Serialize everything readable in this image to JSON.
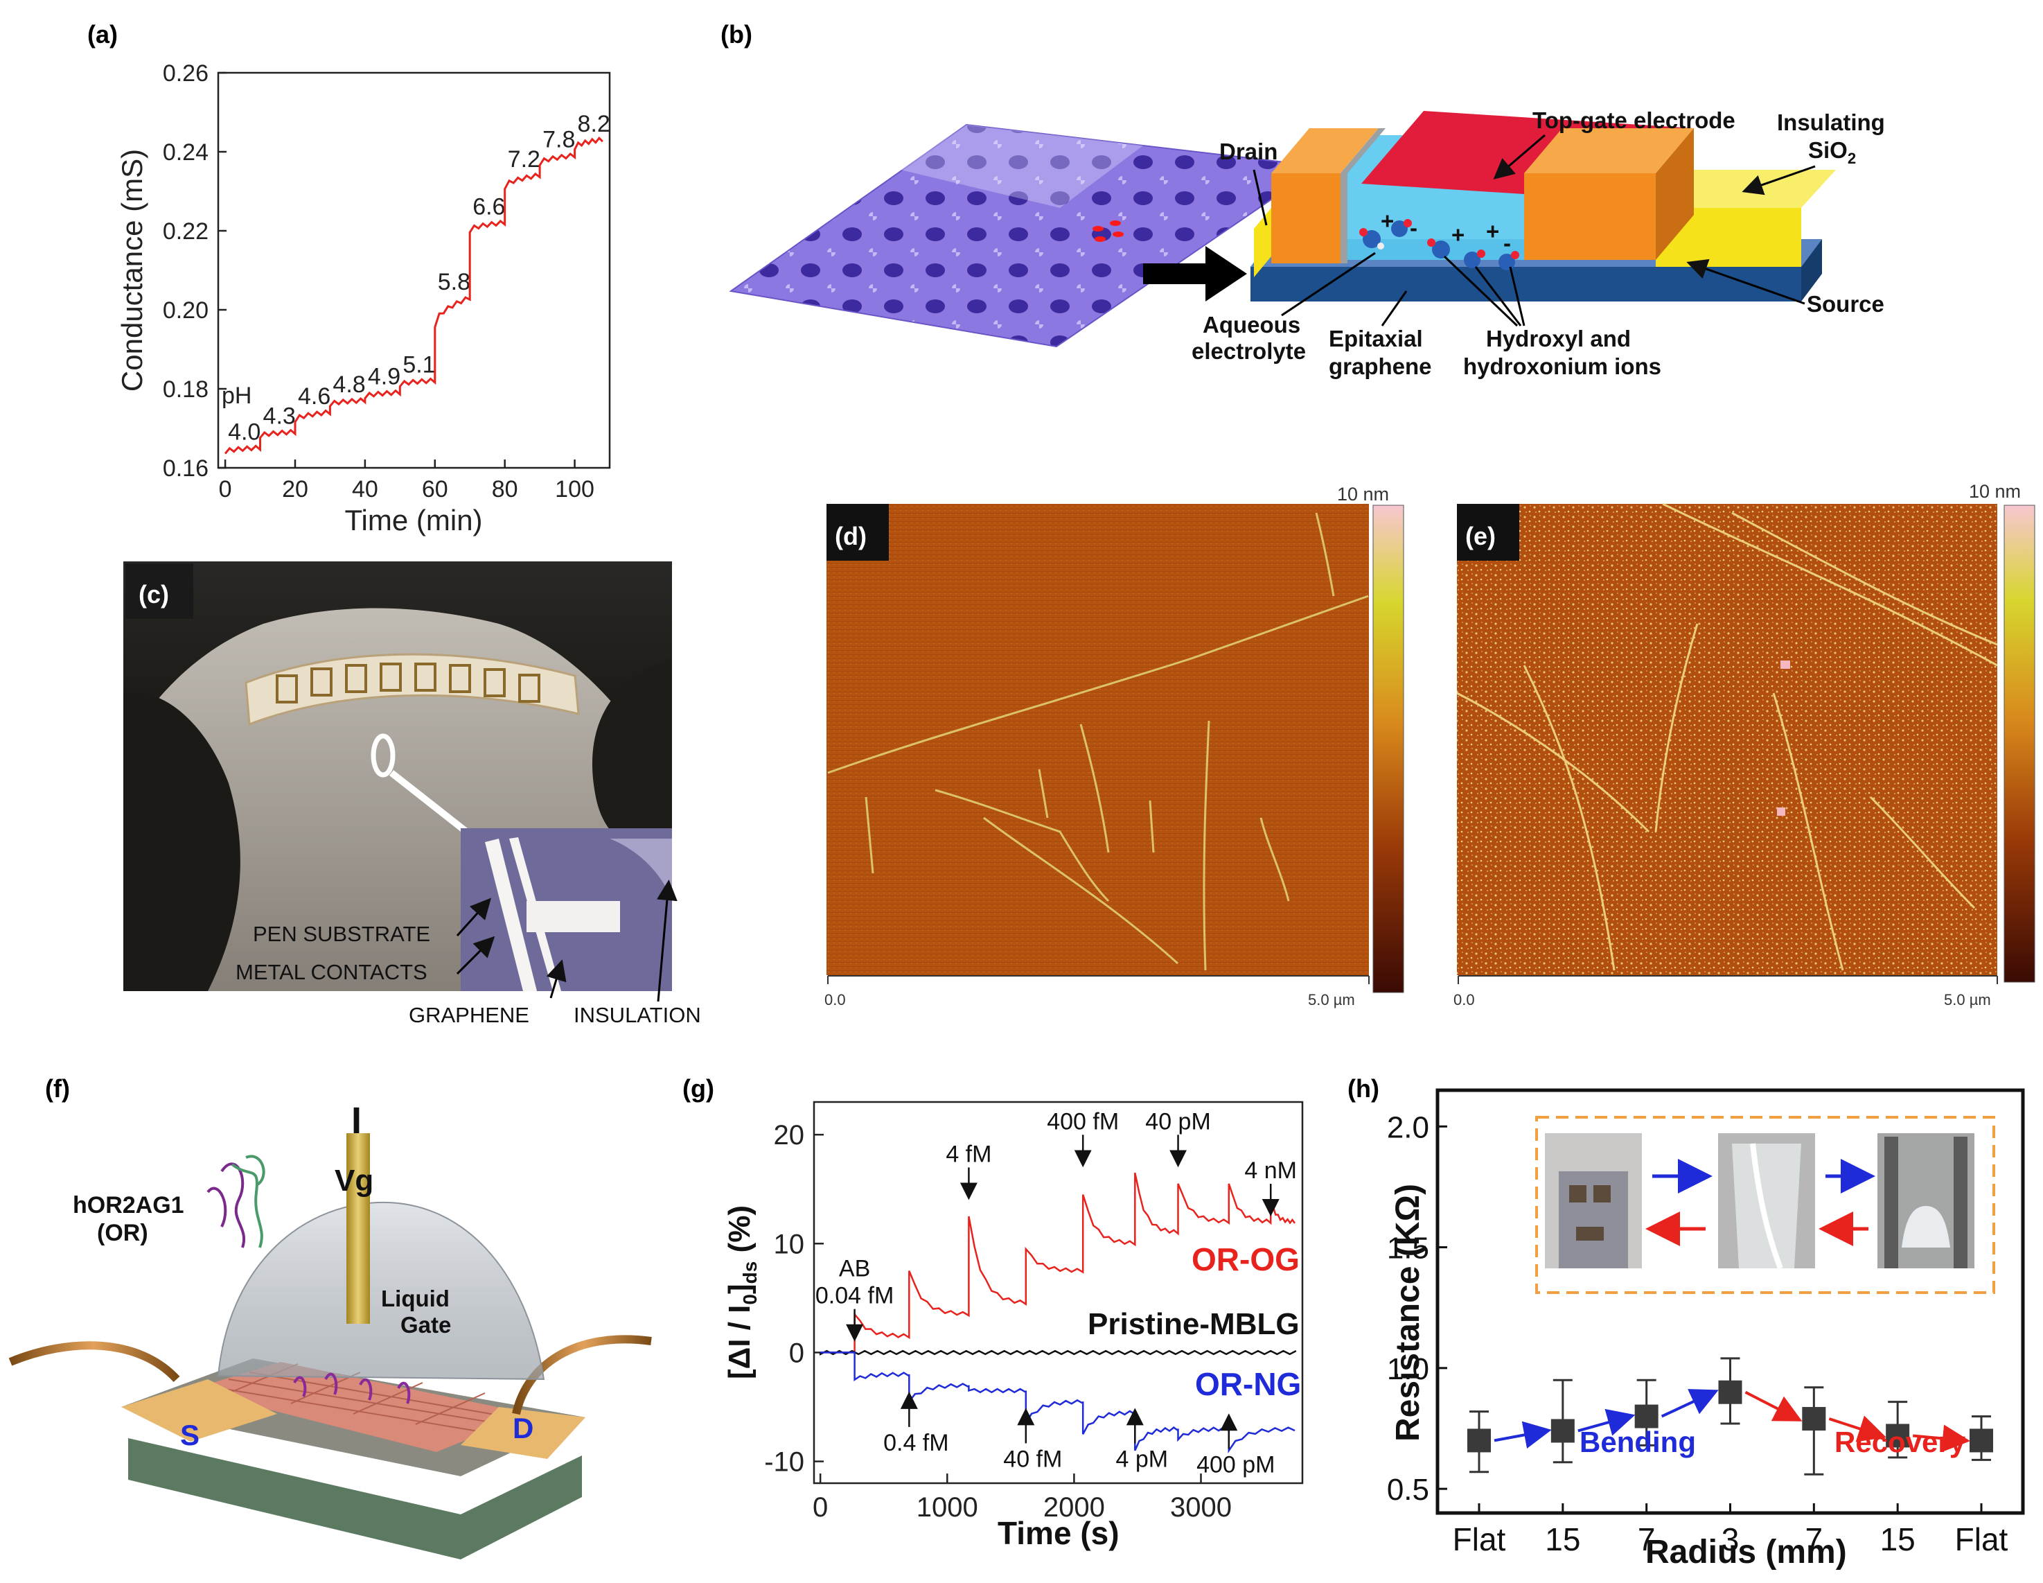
{
  "panels": {
    "a": "(a)",
    "b": "(b)",
    "c": "(c)",
    "d": "(d)",
    "e": "(e)",
    "f": "(f)",
    "g": "(g)",
    "h": "(h)"
  },
  "colors": {
    "red_trace": "#e8231d",
    "blue_trace": "#1f2bd8",
    "afm_base": "#b5500f",
    "afm_film": "#d98a2a",
    "orange_block": "#f28c1e",
    "yellow_block": "#f5e21a",
    "blue_substrate": "#1d4f8c",
    "electrolyte": "#58c8ee",
    "red_gate": "#e21d3b",
    "purple_afm": "#7b5fd6",
    "dashed_orange": "#f0a040"
  },
  "panel_b": {
    "labels": {
      "drain": "Drain",
      "top_gate": "Top-gate electrode",
      "insulating": "Insulating",
      "sio2": "SiO",
      "sio2_sub": "2",
      "source": "Source",
      "aqueous": "Aqueous",
      "electrolyte": "electrolyte",
      "epitaxial": "Epitaxial",
      "graphene": "graphene",
      "hydroxyl": "Hydroxyl and",
      "hydroxonium": "hydroxonium ions"
    }
  },
  "panel_c": {
    "labels": [
      "PEN SUBSTRATE",
      "METAL CONTACTS",
      "GRAPHENE",
      "INSULATION"
    ]
  },
  "panel_d": {
    "scale_top": "10 nm",
    "x_start": "0.0",
    "x_end": "5.0 µm"
  },
  "panel_e": {
    "scale_top": "10 nm",
    "x_start": "0.0",
    "x_end": "5.0 µm"
  },
  "panel_f": {
    "labels": {
      "i": "I",
      "vg": "Vg",
      "receptor": "hOR2AG1",
      "receptor_abbr": "(OR)",
      "liquid": "Liquid",
      "gate": "Gate",
      "s": "S",
      "d": "D"
    }
  },
  "chart_data": [
    {
      "panel": "a",
      "type": "line",
      "title": "",
      "xlabel": "Time (min)",
      "ylabel": "Conductance (mS)",
      "xlim": [
        -2,
        110
      ],
      "ylim": [
        0.16,
        0.26
      ],
      "xticks": [
        0,
        20,
        40,
        60,
        80,
        100
      ],
      "yticks": [
        0.16,
        0.18,
        0.2,
        0.22,
        0.24,
        0.26
      ],
      "ytick_labels": [
        "0.16",
        "0.18",
        "0.20",
        "0.22",
        "0.24",
        "0.26"
      ],
      "ph_prefix": "pH",
      "steps": [
        {
          "t0": 0,
          "t1": 10,
          "g0": 0.164,
          "g1": 0.165,
          "label": "4.0"
        },
        {
          "t0": 10,
          "t1": 20,
          "g0": 0.168,
          "g1": 0.169,
          "label": "4.3"
        },
        {
          "t0": 20,
          "t1": 30,
          "g0": 0.172,
          "g1": 0.174,
          "label": "4.6"
        },
        {
          "t0": 30,
          "t1": 40,
          "g0": 0.176,
          "g1": 0.177,
          "label": "4.8"
        },
        {
          "t0": 40,
          "t1": 50,
          "g0": 0.178,
          "g1": 0.179,
          "label": "4.9"
        },
        {
          "t0": 50,
          "t1": 60,
          "g0": 0.181,
          "g1": 0.182,
          "label": "5.1"
        },
        {
          "t0": 60,
          "t1": 70,
          "g0": 0.196,
          "g1": 0.203,
          "label": "5.8"
        },
        {
          "t0": 70,
          "t1": 80,
          "g0": 0.22,
          "g1": 0.222,
          "label": "6.6"
        },
        {
          "t0": 80,
          "t1": 90,
          "g0": 0.231,
          "g1": 0.234,
          "label": "7.2"
        },
        {
          "t0": 90,
          "t1": 100,
          "g0": 0.237,
          "g1": 0.239,
          "label": "7.8"
        },
        {
          "t0": 100,
          "t1": 108,
          "g0": 0.241,
          "g1": 0.243,
          "label": "8.2"
        }
      ]
    },
    {
      "panel": "g",
      "type": "line",
      "xlabel": "Time (s)",
      "ylabel_main": "[ΔI / I",
      "ylabel_sub0": "0",
      "ylabel_close": "]",
      "ylabel_sub1": "ds",
      "ylabel_unit": " (%)",
      "xlim": [
        -50,
        3800
      ],
      "ylim": [
        -12,
        23
      ],
      "xticks": [
        0,
        1000,
        2000,
        3000
      ],
      "yticks": [
        -10,
        0,
        10,
        20
      ],
      "series": [
        {
          "name": "OR-OG",
          "color": "#e8231d",
          "events": [
            270,
            700,
            1170,
            1620,
            2070,
            2480,
            2820,
            3220,
            3550
          ],
          "peaks": [
            3.5,
            7.5,
            12.5,
            9.5,
            14.5,
            16.5,
            15.5,
            15.5,
            14
          ],
          "baselines": [
            1.5,
            3.5,
            4.5,
            7.5,
            10,
            11,
            12,
            12,
            12
          ]
        },
        {
          "name": "Pristine-MBLG",
          "color": "#111111",
          "level": 0
        },
        {
          "name": "OR-NG",
          "color": "#1f2bd8",
          "events": [
            270,
            700,
            1170,
            1620,
            2070,
            2480,
            2820,
            3220
          ],
          "peaks": [
            -2.5,
            -4.5,
            -3.5,
            -6.5,
            -7.5,
            -9,
            -8,
            -9
          ],
          "baselines": [
            -2,
            -3,
            -3.5,
            -4.5,
            -5.5,
            -7,
            -7,
            -7
          ]
        }
      ],
      "annotations_above": [
        {
          "text": "AB",
          "x": 270,
          "y": 7.0
        },
        {
          "text": "0.04 fM",
          "x": 270,
          "y": 4.5
        },
        {
          "text": "4 fM",
          "x": 1170,
          "y": 17.5
        },
        {
          "text": "400 fM",
          "x": 2070,
          "y": 20.5
        },
        {
          "text": "40 pM",
          "x": 2820,
          "y": 20.5
        },
        {
          "text": "4 nM",
          "x": 3550,
          "y": 16.0
        }
      ],
      "annotations_below": [
        {
          "text": "0.4 fM",
          "x": 700,
          "y": -9.0
        },
        {
          "text": "40 fM",
          "x": 1620,
          "y": -10.5
        },
        {
          "text": "4 pM",
          "x": 2480,
          "y": -10.5
        },
        {
          "text": "400 pM",
          "x": 3220,
          "y": -11.0
        }
      ]
    },
    {
      "panel": "h",
      "type": "scatter",
      "xlabel": "Radius (mm)",
      "ylabel": "Resistance (KΩ)",
      "categories": [
        "Flat",
        "15",
        "7",
        "3",
        "7",
        "15",
        "Flat"
      ],
      "values": [
        0.7,
        0.74,
        0.8,
        0.9,
        0.79,
        0.72,
        0.7
      ],
      "err_low": [
        0.57,
        0.61,
        0.68,
        0.77,
        0.56,
        0.63,
        0.62
      ],
      "err_high": [
        0.82,
        0.95,
        0.95,
        1.04,
        0.92,
        0.86,
        0.8
      ],
      "ylim": [
        0.4,
        2.15
      ],
      "yticks": [
        0.5,
        1.0,
        1.5,
        2.0
      ],
      "ytick_labels": [
        "0.5",
        "1.0",
        "1.5",
        "2.0"
      ],
      "phase_labels": {
        "bending": "Bending",
        "recovery": "Recovery"
      }
    }
  ]
}
